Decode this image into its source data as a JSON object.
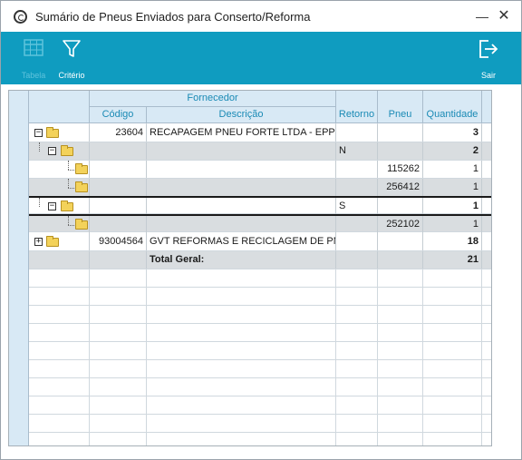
{
  "window": {
    "title": "Sumário de Pneus Enviados para Conserto/Reforma"
  },
  "toolbar": {
    "tabela_label": "Tabela",
    "criterio_label": "Critério",
    "sair_label": "Sair"
  },
  "grid": {
    "headers": {
      "fornecedor": "Fornecedor",
      "codigo": "Código",
      "descricao": "Descrição",
      "retorno": "Retorno",
      "pneu": "Pneu",
      "quantidade": "Quantidade"
    },
    "rows": [
      {
        "codigo": "23604",
        "descricao": "RECAPAGEM PNEU FORTE LTDA - EPP",
        "retorno": "",
        "pneu": "",
        "quantidade": "3"
      },
      {
        "codigo": "",
        "descricao": "",
        "retorno": "N",
        "pneu": "",
        "quantidade": "2"
      },
      {
        "codigo": "",
        "descricao": "",
        "retorno": "",
        "pneu": "115262",
        "quantidade": "1"
      },
      {
        "codigo": "",
        "descricao": "",
        "retorno": "",
        "pneu": "256412",
        "quantidade": "1"
      },
      {
        "codigo": "",
        "descricao": "",
        "retorno": "S",
        "pneu": "",
        "quantidade": "1"
      },
      {
        "codigo": "",
        "descricao": "",
        "retorno": "",
        "pneu": "252102",
        "quantidade": "1"
      },
      {
        "codigo": "93004564",
        "descricao": "GVT REFORMAS E RECICLAGEM DE PNE",
        "retorno": "",
        "pneu": "",
        "quantidade": "18"
      },
      {
        "codigo": "",
        "descricao": "Total Geral:",
        "retorno": "",
        "pneu": "",
        "quantidade": "21"
      }
    ]
  },
  "colors": {
    "toolbar": "#0f9cc0",
    "header_text": "#1a8ab5",
    "header_bg": "#d8e9f5"
  }
}
